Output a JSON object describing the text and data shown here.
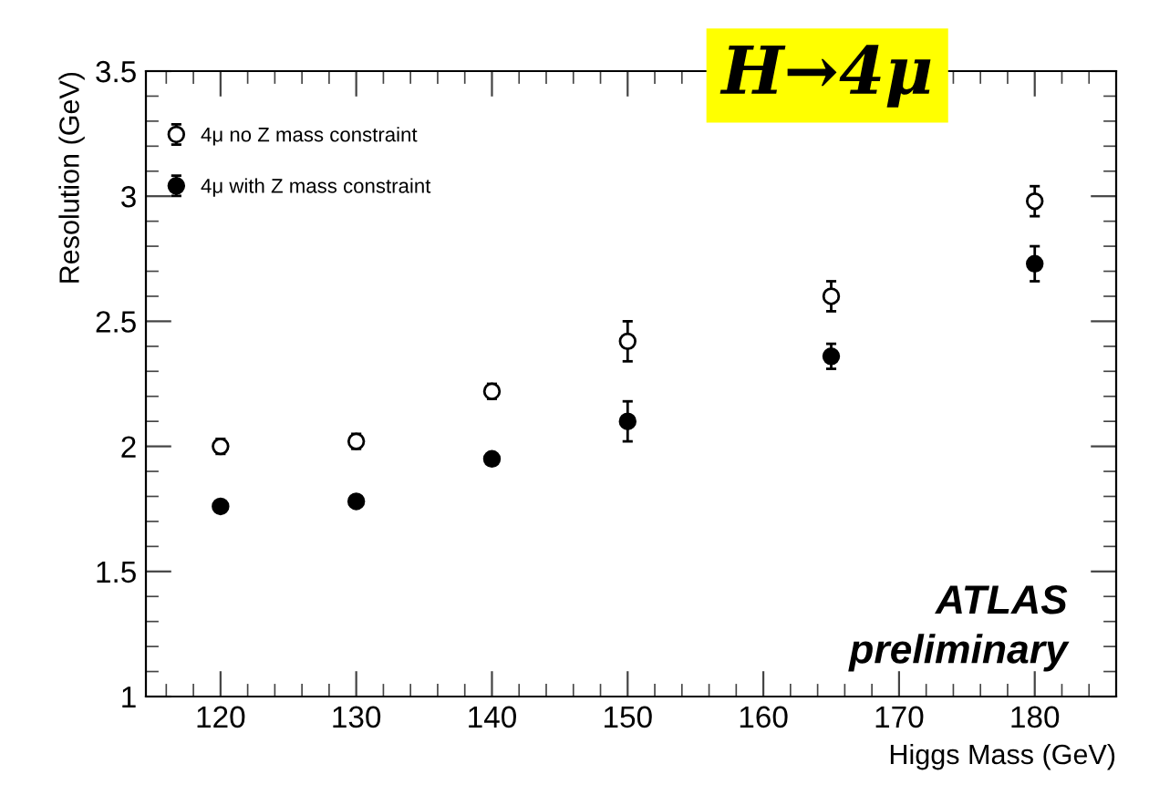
{
  "chart_data": {
    "type": "scatter",
    "title": "H→4μ",
    "xlabel": "Higgs Mass (GeV)",
    "ylabel": "Resolution (GeV)",
    "x": [
      120,
      130,
      140,
      150,
      165,
      180
    ],
    "series": [
      {
        "name": "4μ no Z mass constraint",
        "color": "#ffffff",
        "values": [
          2.0,
          2.02,
          2.22,
          2.42,
          2.6,
          2.98
        ],
        "errors": [
          0.03,
          0.03,
          0.03,
          0.08,
          0.06,
          0.06
        ]
      },
      {
        "name": "4μ with Z mass constraint",
        "color": "#000000",
        "values": [
          1.76,
          1.78,
          1.95,
          2.1,
          2.36,
          2.73
        ],
        "errors": [
          0.02,
          0.02,
          0.02,
          0.08,
          0.05,
          0.07
        ]
      }
    ],
    "xlim": [
      114.5,
      186
    ],
    "xticks": [
      120,
      130,
      140,
      150,
      160,
      170,
      180
    ],
    "ylim": [
      1,
      3.5
    ],
    "yticks": [
      1,
      1.5,
      2,
      2.5,
      3,
      3.5
    ],
    "annotations": [
      "ATLAS\npreliminary"
    ],
    "marker": "circle",
    "legend": "top left",
    "grid": false
  }
}
